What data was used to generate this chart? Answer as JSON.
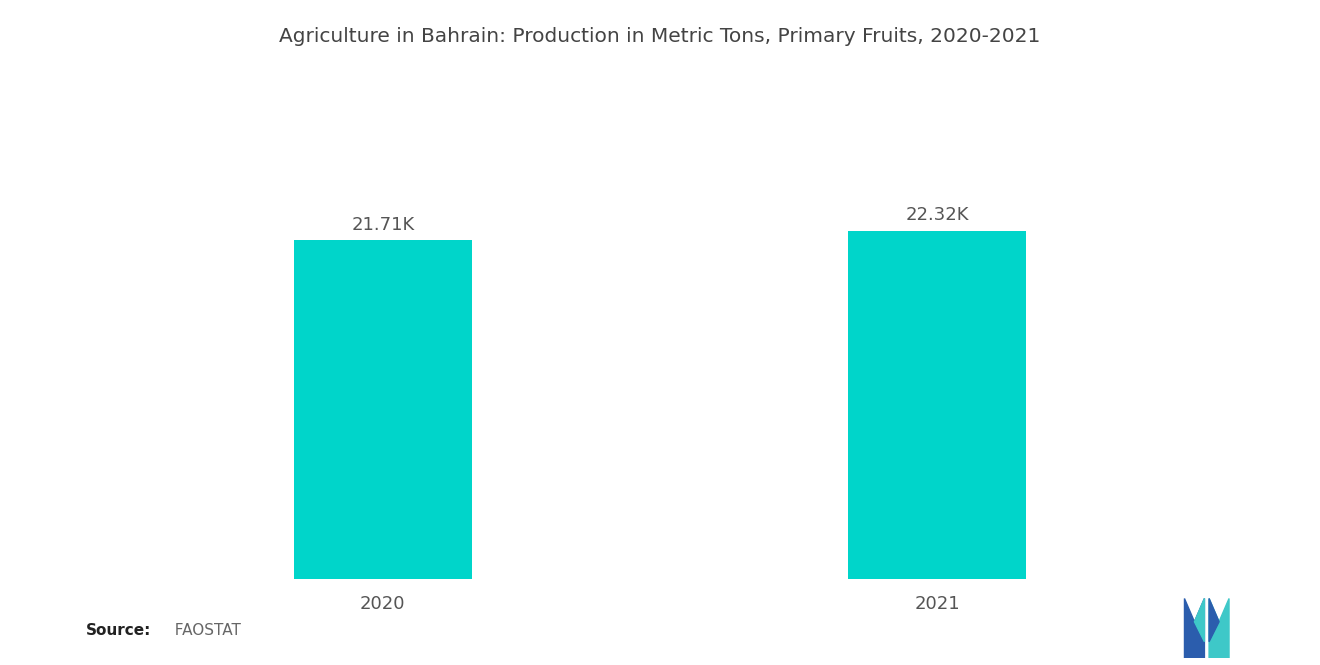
{
  "title": "Agriculture in Bahrain: Production in Metric Tons, Primary Fruits, 2020-2021",
  "categories": [
    "2020",
    "2021"
  ],
  "values": [
    21710,
    22320
  ],
  "labels": [
    "21.71K",
    "22.32K"
  ],
  "bar_color": "#00D5CA",
  "background_color": "#ffffff",
  "title_fontsize": 14.5,
  "label_fontsize": 13,
  "tick_fontsize": 13,
  "ylim": [
    0,
    29000
  ],
  "bar_width": 0.32,
  "x_positions": [
    1,
    2
  ],
  "xlim": [
    0.5,
    2.5
  ]
}
